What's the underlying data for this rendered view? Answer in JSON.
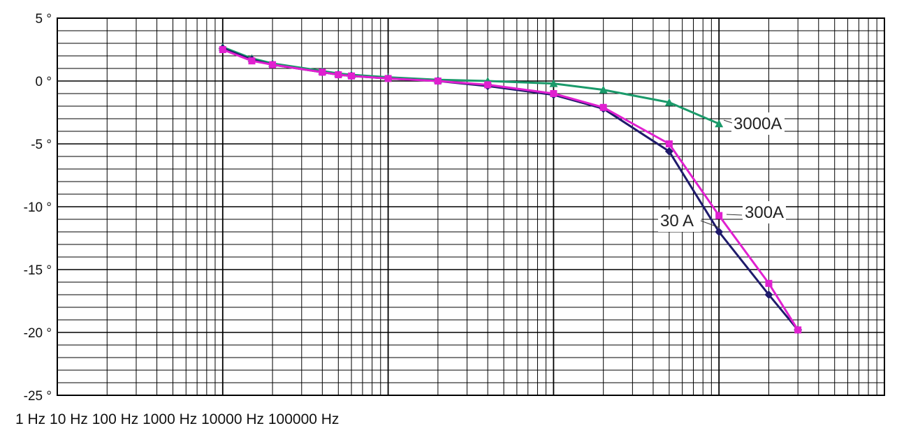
{
  "chart_data": {
    "type": "line",
    "x_scale": "log",
    "xlim": [
      1,
      100000
    ],
    "ylim": [
      -25,
      5
    ],
    "y_ticks": [
      {
        "value": 5,
        "label": "5 °"
      },
      {
        "value": 0,
        "label": "0 °"
      },
      {
        "value": -5,
        "label": "-5 °"
      },
      {
        "value": -10,
        "label": "-10 °"
      },
      {
        "value": -15,
        "label": "-15 °"
      },
      {
        "value": -20,
        "label": "-20 °"
      },
      {
        "value": -25,
        "label": "-25 °"
      }
    ],
    "x_axis_text": "1 Hz 10 Hz 100 Hz 1000 Hz 10000 Hz 100000 Hz",
    "grid": true,
    "series": [
      {
        "name": "30 A",
        "color": "#1f1a6b",
        "marker": "diamond",
        "x": [
          10,
          15,
          20,
          40,
          50,
          60,
          100,
          200,
          400,
          1000,
          2000,
          5000,
          10000,
          20000,
          30000
        ],
        "y": [
          2.6,
          1.7,
          1.3,
          0.7,
          0.5,
          0.4,
          0.2,
          0.0,
          -0.4,
          -1.1,
          -2.2,
          -5.6,
          -12.0,
          -17.0,
          -19.8
        ]
      },
      {
        "name": "300A",
        "color": "#e020d0",
        "marker": "square",
        "x": [
          10,
          15,
          20,
          40,
          50,
          60,
          100,
          200,
          400,
          1000,
          2000,
          5000,
          10000,
          20000,
          30000
        ],
        "y": [
          2.5,
          1.6,
          1.3,
          0.7,
          0.5,
          0.4,
          0.2,
          0.0,
          -0.3,
          -1.0,
          -2.1,
          -5.0,
          -10.7,
          -16.1,
          -19.8
        ]
      },
      {
        "name": "3000A",
        "color": "#1a9a6a",
        "marker": "triangle",
        "x": [
          10,
          15,
          20,
          40,
          50,
          60,
          100,
          200,
          400,
          1000,
          2000,
          5000,
          10000
        ],
        "y": [
          2.7,
          1.8,
          1.4,
          0.8,
          0.6,
          0.5,
          0.3,
          0.1,
          0.0,
          -0.2,
          -0.7,
          -1.7,
          -3.4
        ]
      }
    ]
  }
}
